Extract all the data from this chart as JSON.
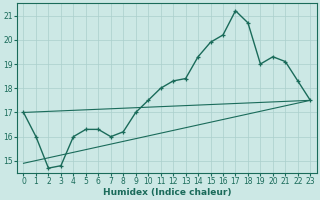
{
  "xlabel": "Humidex (Indice chaleur)",
  "bg_color": "#cce8e5",
  "grid_color": "#aacfcc",
  "line_color": "#1a6b5a",
  "xlim": [
    -0.5,
    23.5
  ],
  "ylim": [
    14.5,
    21.5
  ],
  "yticks": [
    15,
    16,
    17,
    18,
    19,
    20,
    21
  ],
  "xticks": [
    0,
    1,
    2,
    3,
    4,
    5,
    6,
    7,
    8,
    9,
    10,
    11,
    12,
    13,
    14,
    15,
    16,
    17,
    18,
    19,
    20,
    21,
    22,
    23
  ],
  "main_x": [
    0,
    1,
    2,
    3,
    4,
    5,
    6,
    7,
    8,
    9,
    10,
    11,
    12,
    13,
    14,
    15,
    16,
    17,
    18,
    19,
    20,
    21,
    22,
    23
  ],
  "main_y": [
    17.0,
    16.0,
    14.7,
    14.8,
    16.0,
    16.3,
    16.3,
    16.0,
    16.2,
    17.0,
    17.5,
    18.0,
    18.3,
    18.4,
    19.3,
    19.9,
    20.2,
    21.2,
    20.7,
    19.0,
    19.3,
    19.1,
    18.3,
    17.5
  ],
  "line2_x": [
    0,
    23
  ],
  "line2_y": [
    17.0,
    17.5
  ],
  "line3_x": [
    0,
    23
  ],
  "line3_y": [
    14.9,
    17.5
  ]
}
